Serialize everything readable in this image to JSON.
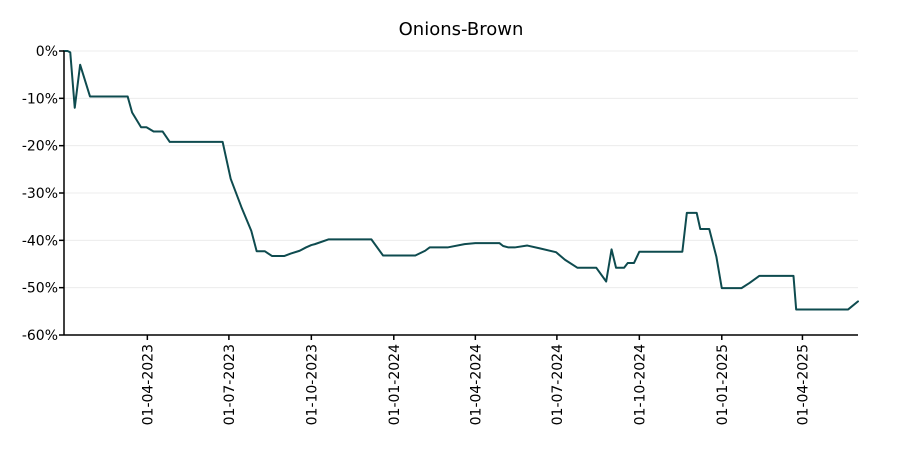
{
  "chart_data": {
    "type": "line",
    "title": "Onions-Brown",
    "xlabel": "",
    "ylabel": "",
    "grid": "horizontal",
    "ylim": [
      -60,
      0
    ],
    "y_ticks": [
      0,
      -10,
      -20,
      -30,
      -40,
      -50,
      -60
    ],
    "y_tick_labels": [
      "0%",
      "-10%",
      "-20%",
      "-30%",
      "-40%",
      "-50%",
      "-60%"
    ],
    "xlim": [
      "2022-12-29",
      "2025-06-02"
    ],
    "x_ticks": [
      "2023-04-01",
      "2023-07-01",
      "2023-10-01",
      "2024-01-01",
      "2024-04-01",
      "2024-07-01",
      "2024-10-01",
      "2025-01-01",
      "2025-04-01"
    ],
    "x_tick_labels": [
      "01-04-2023",
      "01-07-2023",
      "01-10-2023",
      "01-01-2024",
      "01-04-2024",
      "01-07-2024",
      "01-10-2024",
      "01-01-2025",
      "01-04-2025"
    ],
    "series": [
      {
        "color": "#0e4b4f",
        "x": [
          "2022-12-29",
          "2023-01-02",
          "2023-01-05",
          "2023-01-10",
          "2023-01-16",
          "2023-01-27",
          "2023-02-08",
          "2023-02-20",
          "2023-03-01",
          "2023-03-10",
          "2023-03-15",
          "2023-03-25",
          "2023-03-31",
          "2023-04-08",
          "2023-04-12",
          "2023-04-18",
          "2023-04-26",
          "2023-05-08",
          "2023-05-22",
          "2023-06-05",
          "2023-06-24",
          "2023-07-03",
          "2023-07-15",
          "2023-07-26",
          "2023-08-01",
          "2023-08-05",
          "2023-08-10",
          "2023-08-18",
          "2023-08-25",
          "2023-09-01",
          "2023-09-08",
          "2023-09-18",
          "2023-09-25",
          "2023-10-01",
          "2023-10-05",
          "2023-10-20",
          "2023-11-05",
          "2023-11-16",
          "2023-11-25",
          "2023-12-07",
          "2023-12-20",
          "2024-01-01",
          "2024-01-08",
          "2024-01-15",
          "2024-01-25",
          "2024-02-05",
          "2024-02-10",
          "2024-02-15",
          "2024-03-01",
          "2024-03-20",
          "2024-04-01",
          "2024-04-10",
          "2024-04-15",
          "2024-04-22",
          "2024-04-28",
          "2024-05-02",
          "2024-05-08",
          "2024-05-15",
          "2024-05-29",
          "2024-06-12",
          "2024-06-30",
          "2024-07-10",
          "2024-07-24",
          "2024-08-01",
          "2024-08-05",
          "2024-08-14",
          "2024-08-25",
          "2024-08-31",
          "2024-09-05",
          "2024-09-10",
          "2024-09-14",
          "2024-09-18",
          "2024-09-25",
          "2024-10-01",
          "2024-10-15",
          "2024-10-25",
          "2024-11-10",
          "2024-11-18",
          "2024-11-23",
          "2024-11-28",
          "2024-12-04",
          "2024-12-08",
          "2024-12-12",
          "2024-12-18",
          "2024-12-26",
          "2025-01-01",
          "2025-01-08",
          "2025-01-15",
          "2025-01-23",
          "2025-02-01",
          "2025-02-12",
          "2025-02-22",
          "2025-03-08",
          "2025-03-22",
          "2025-03-25",
          "2025-04-01",
          "2025-04-10",
          "2025-04-25",
          "2025-05-15",
          "2025-05-22",
          "2025-06-02"
        ],
        "y": [
          0,
          0,
          -0.3,
          -12,
          -2.9,
          -9.6,
          -9.6,
          -9.6,
          -9.6,
          -9.6,
          -13,
          -16.1,
          -16.1,
          -17,
          -17,
          -17,
          -19.2,
          -19.2,
          -19.2,
          -19.2,
          -19.2,
          -27,
          -33,
          -38,
          -42.3,
          -42.3,
          -42.3,
          -43.3,
          -43.3,
          -43.3,
          -42.8,
          -42.2,
          -41.5,
          -41,
          -40.8,
          -39.8,
          -39.8,
          -39.8,
          -39.8,
          -39.8,
          -43.2,
          -43.2,
          -43.2,
          -43.2,
          -43.2,
          -42.2,
          -41.5,
          -41.5,
          -41.5,
          -40.8,
          -40.6,
          -40.6,
          -40.6,
          -40.6,
          -40.6,
          -41.2,
          -41.5,
          -41.5,
          -41.1,
          -41.7,
          -42.5,
          -44.1,
          -45.8,
          -45.8,
          -45.8,
          -45.8,
          -48.7,
          -41.9,
          -45.8,
          -45.8,
          -45.8,
          -44.8,
          -44.8,
          -42.4,
          -42.4,
          -42.4,
          -42.4,
          -42.4,
          -34.2,
          -34.2,
          -34.2,
          -37.6,
          -37.6,
          -37.6,
          -43.5,
          -50.1,
          -50.1,
          -50.1,
          -50.1,
          -49,
          -47.5,
          -47.5,
          -47.5,
          -47.5,
          -54.6,
          -54.6,
          -54.6,
          -54.6,
          -54.6,
          -54.6,
          -52.9
        ]
      }
    ]
  }
}
